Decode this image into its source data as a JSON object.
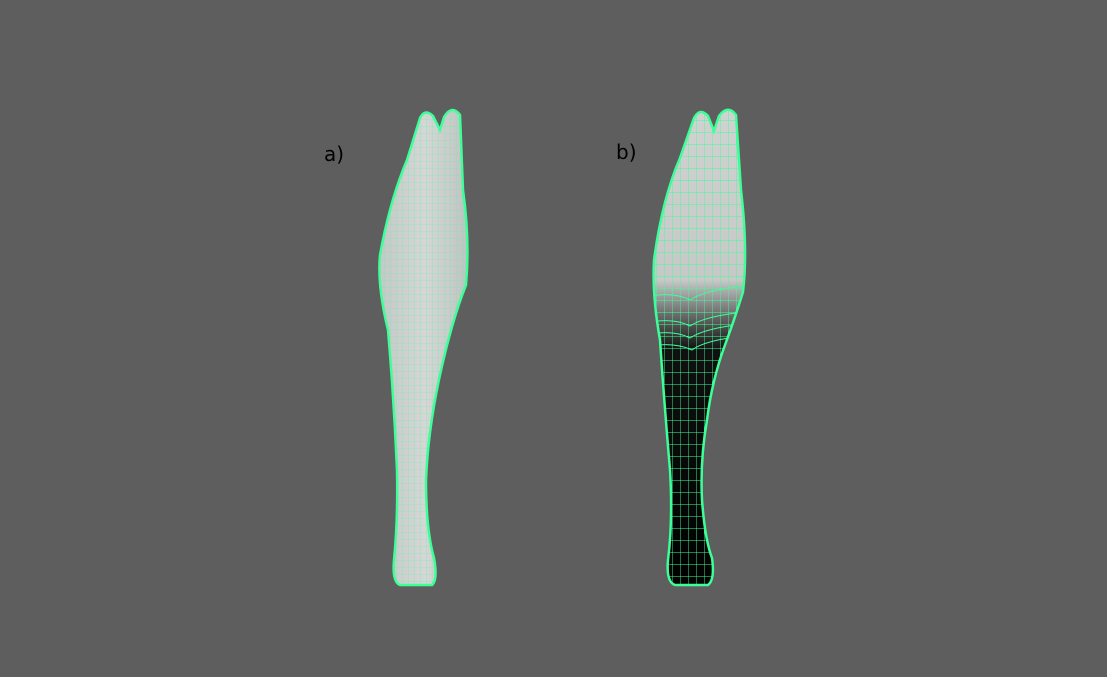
{
  "panels": [
    {
      "label": "a)",
      "weight_painted": false
    },
    {
      "label": "b)",
      "weight_painted": true
    }
  ],
  "colors": {
    "background": "#5e5e5e",
    "wireframe": "#3dff98",
    "surface_light": "#d0d0d0",
    "surface_dark": "#000000",
    "label_text": "#000000"
  }
}
